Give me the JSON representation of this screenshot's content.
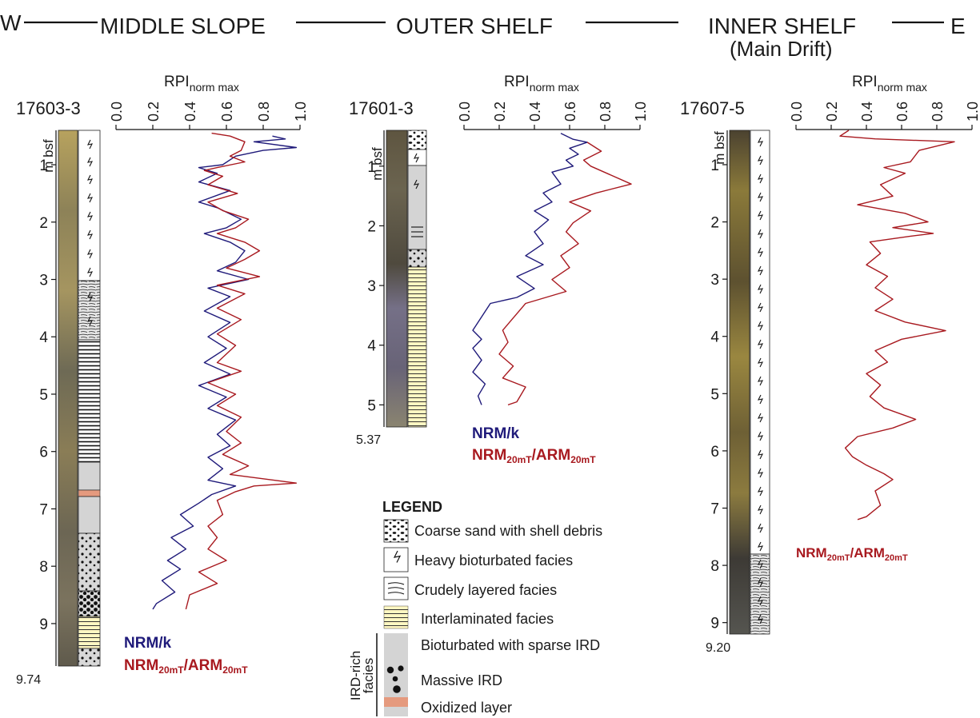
{
  "header": {
    "west": "W",
    "east": "E",
    "middle_slope": "MIDDLE SLOPE",
    "outer_shelf": "OUTER SHELF",
    "inner_shelf": "INNER SHELF",
    "inner_shelf_sub": "(Main Drift)"
  },
  "colors": {
    "nrm_k": "#1f1a7a",
    "nrm_arm": "#a8191f",
    "oxidized": "#e59a7e",
    "interlaminated": "#fff7c2",
    "bioturbated_ird": "#d4d4d4"
  },
  "axis_common": {
    "rpi_base": "RPI",
    "rpi_sub": "norm max",
    "depth_unit": "m bsf",
    "rpi_ticks": [
      "0.0",
      "0.2",
      "0.4",
      "0.6",
      "0.8",
      "1.0"
    ]
  },
  "cores": {
    "c17603": {
      "id": "17603-3",
      "bottom": "9.74",
      "depth_ticks": [
        "1",
        "2",
        "3",
        "4",
        "5",
        "6",
        "7",
        "8",
        "9"
      ]
    },
    "c17601": {
      "id": "17601-3",
      "bottom": "5.37",
      "depth_ticks": [
        "1",
        "2",
        "3",
        "4",
        "5"
      ]
    },
    "c17607": {
      "id": "17607-5",
      "bottom": "9.20",
      "depth_ticks": [
        "1",
        "2",
        "3",
        "4",
        "5",
        "6",
        "7",
        "8",
        "9"
      ]
    }
  },
  "legend_labels": {
    "nrm_k": "NRM/k",
    "nrm_base": "NRM",
    "arm_base": "/ARM",
    "sub_20mt": "20mT"
  },
  "legend": {
    "title": "LEGEND",
    "coarse_sand": "Coarse sand with shell debris",
    "heavy_bioturbated": "Heavy bioturbated facies",
    "crudely_layered": "Crudely layered facies",
    "interlaminated": "Interlaminated facies",
    "bioturbated_ird": "Bioturbated with sparse IRD",
    "massive_ird": "Massive IRD",
    "oxidized": "Oxidized layer",
    "ird_group_1": "IRD-rich",
    "ird_group_2": "facies"
  },
  "chart_data": [
    {
      "type": "line",
      "core": "17603-3",
      "xlabel": "RPI norm max",
      "ylabel": "m bsf",
      "xlim": [
        0,
        1
      ],
      "ylim": [
        9.74,
        0.4
      ],
      "series": [
        {
          "name": "NRM/k",
          "points": [
            [
              0.85,
              0.5
            ],
            [
              0.92,
              0.55
            ],
            [
              0.75,
              0.6
            ],
            [
              0.98,
              0.7
            ],
            [
              0.8,
              0.75
            ],
            [
              0.65,
              0.85
            ],
            [
              0.58,
              1.0
            ],
            [
              0.45,
              1.05
            ],
            [
              0.55,
              1.15
            ],
            [
              0.45,
              1.3
            ],
            [
              0.62,
              1.45
            ],
            [
              0.45,
              1.65
            ],
            [
              0.55,
              1.75
            ],
            [
              0.68,
              1.95
            ],
            [
              0.6,
              2.1
            ],
            [
              0.48,
              2.2
            ],
            [
              0.62,
              2.35
            ],
            [
              0.7,
              2.5
            ],
            [
              0.65,
              2.7
            ],
            [
              0.55,
              2.85
            ],
            [
              0.72,
              3.0
            ],
            [
              0.5,
              3.15
            ],
            [
              0.62,
              3.3
            ],
            [
              0.48,
              3.55
            ],
            [
              0.62,
              3.75
            ],
            [
              0.5,
              4.0
            ],
            [
              0.6,
              4.2
            ],
            [
              0.48,
              4.45
            ],
            [
              0.62,
              4.65
            ],
            [
              0.45,
              4.85
            ],
            [
              0.6,
              5.05
            ],
            [
              0.5,
              5.25
            ],
            [
              0.65,
              5.45
            ],
            [
              0.55,
              5.7
            ],
            [
              0.62,
              5.9
            ],
            [
              0.5,
              6.1
            ],
            [
              0.58,
              6.3
            ],
            [
              0.5,
              6.5
            ],
            [
              0.65,
              6.6
            ],
            [
              0.52,
              6.75
            ],
            [
              0.45,
              6.9
            ],
            [
              0.35,
              7.1
            ],
            [
              0.42,
              7.3
            ],
            [
              0.3,
              7.5
            ],
            [
              0.38,
              7.7
            ],
            [
              0.28,
              7.9
            ],
            [
              0.35,
              8.05
            ],
            [
              0.25,
              8.25
            ],
            [
              0.32,
              8.45
            ],
            [
              0.22,
              8.65
            ],
            [
              0.2,
              8.75
            ]
          ]
        },
        {
          "name": "NRM20mT/ARM20mT",
          "points": [
            [
              0.52,
              0.45
            ],
            [
              0.62,
              0.5
            ],
            [
              0.7,
              0.6
            ],
            [
              0.68,
              0.75
            ],
            [
              0.62,
              0.85
            ],
            [
              0.7,
              0.95
            ],
            [
              0.55,
              1.05
            ],
            [
              0.48,
              1.1
            ],
            [
              0.58,
              1.2
            ],
            [
              0.5,
              1.35
            ],
            [
              0.66,
              1.5
            ],
            [
              0.5,
              1.65
            ],
            [
              0.58,
              1.8
            ],
            [
              0.72,
              1.95
            ],
            [
              0.65,
              2.1
            ],
            [
              0.55,
              2.2
            ],
            [
              0.7,
              2.35
            ],
            [
              0.78,
              2.5
            ],
            [
              0.7,
              2.65
            ],
            [
              0.6,
              2.8
            ],
            [
              0.78,
              2.95
            ],
            [
              0.55,
              3.1
            ],
            [
              0.7,
              3.25
            ],
            [
              0.55,
              3.5
            ],
            [
              0.68,
              3.7
            ],
            [
              0.55,
              3.95
            ],
            [
              0.65,
              4.15
            ],
            [
              0.55,
              4.45
            ],
            [
              0.68,
              4.6
            ],
            [
              0.5,
              4.8
            ],
            [
              0.65,
              5.0
            ],
            [
              0.55,
              5.2
            ],
            [
              0.68,
              5.4
            ],
            [
              0.6,
              5.65
            ],
            [
              0.68,
              5.85
            ],
            [
              0.58,
              6.05
            ],
            [
              0.72,
              6.25
            ],
            [
              0.62,
              6.4
            ],
            [
              0.98,
              6.55
            ],
            [
              0.75,
              6.6
            ],
            [
              0.65,
              6.7
            ],
            [
              0.55,
              6.85
            ],
            [
              0.58,
              7.1
            ],
            [
              0.5,
              7.3
            ],
            [
              0.55,
              7.5
            ],
            [
              0.5,
              7.7
            ],
            [
              0.6,
              7.9
            ],
            [
              0.45,
              8.1
            ],
            [
              0.55,
              8.3
            ],
            [
              0.4,
              8.5
            ],
            [
              0.38,
              8.75
            ]
          ]
        }
      ]
    },
    {
      "type": "line",
      "core": "17601-3",
      "xlabel": "RPI norm max",
      "ylabel": "m bsf",
      "xlim": [
        0,
        1
      ],
      "ylim": [
        5.37,
        0.4
      ],
      "series": [
        {
          "name": "NRM/k",
          "points": [
            [
              0.55,
              0.45
            ],
            [
              0.62,
              0.55
            ],
            [
              0.7,
              0.6
            ],
            [
              0.6,
              0.7
            ],
            [
              0.65,
              0.8
            ],
            [
              0.58,
              0.9
            ],
            [
              0.62,
              1.0
            ],
            [
              0.5,
              1.1
            ],
            [
              0.55,
              1.3
            ],
            [
              0.45,
              1.45
            ],
            [
              0.5,
              1.6
            ],
            [
              0.4,
              1.75
            ],
            [
              0.48,
              1.9
            ],
            [
              0.4,
              2.1
            ],
            [
              0.45,
              2.3
            ],
            [
              0.35,
              2.5
            ],
            [
              0.45,
              2.65
            ],
            [
              0.3,
              2.85
            ],
            [
              0.4,
              3.05
            ],
            [
              0.3,
              3.2
            ],
            [
              0.15,
              3.3
            ],
            [
              0.05,
              3.75
            ],
            [
              0.1,
              3.9
            ],
            [
              0.05,
              4.05
            ],
            [
              0.1,
              4.25
            ],
            [
              0.05,
              4.45
            ],
            [
              0.12,
              4.65
            ],
            [
              0.08,
              4.85
            ],
            [
              0.1,
              5.0
            ]
          ]
        },
        {
          "name": "NRM20mT/ARM20mT",
          "points": [
            [
              0.7,
              0.6
            ],
            [
              0.78,
              0.75
            ],
            [
              0.68,
              0.9
            ],
            [
              0.72,
              1.0
            ],
            [
              0.95,
              1.3
            ],
            [
              0.75,
              1.45
            ],
            [
              0.6,
              1.6
            ],
            [
              0.72,
              1.75
            ],
            [
              0.62,
              1.95
            ],
            [
              0.58,
              2.1
            ],
            [
              0.65,
              2.3
            ],
            [
              0.55,
              2.5
            ],
            [
              0.6,
              2.7
            ],
            [
              0.5,
              2.9
            ],
            [
              0.58,
              3.1
            ],
            [
              0.35,
              3.3
            ],
            [
              0.22,
              3.75
            ],
            [
              0.25,
              3.95
            ],
            [
              0.2,
              4.15
            ],
            [
              0.28,
              4.35
            ],
            [
              0.22,
              4.55
            ],
            [
              0.35,
              4.7
            ],
            [
              0.3,
              4.95
            ],
            [
              0.25,
              5.0
            ]
          ]
        }
      ]
    },
    {
      "type": "line",
      "core": "17607-5",
      "xlabel": "RPI norm max",
      "ylabel": "m bsf",
      "xlim": [
        0,
        1
      ],
      "ylim": [
        9.2,
        0.4
      ],
      "series": [
        {
          "name": "NRM20mT/ARM20mT",
          "points": [
            [
              0.3,
              0.4
            ],
            [
              0.25,
              0.5
            ],
            [
              0.45,
              0.55
            ],
            [
              0.9,
              0.6
            ],
            [
              0.7,
              0.75
            ],
            [
              0.65,
              0.95
            ],
            [
              0.5,
              1.05
            ],
            [
              0.62,
              1.15
            ],
            [
              0.48,
              1.35
            ],
            [
              0.55,
              1.55
            ],
            [
              0.35,
              1.7
            ],
            [
              0.62,
              1.85
            ],
            [
              0.75,
              2.0
            ],
            [
              0.55,
              2.1
            ],
            [
              0.78,
              2.2
            ],
            [
              0.65,
              2.25
            ],
            [
              0.42,
              2.35
            ],
            [
              0.48,
              2.55
            ],
            [
              0.4,
              2.75
            ],
            [
              0.52,
              2.95
            ],
            [
              0.45,
              3.15
            ],
            [
              0.55,
              3.35
            ],
            [
              0.45,
              3.55
            ],
            [
              0.62,
              3.75
            ],
            [
              0.85,
              3.9
            ],
            [
              0.6,
              4.05
            ],
            [
              0.45,
              4.25
            ],
            [
              0.52,
              4.45
            ],
            [
              0.4,
              4.65
            ],
            [
              0.48,
              4.85
            ],
            [
              0.42,
              5.05
            ],
            [
              0.5,
              5.25
            ],
            [
              0.68,
              5.45
            ],
            [
              0.55,
              5.6
            ],
            [
              0.35,
              5.75
            ],
            [
              0.28,
              5.95
            ],
            [
              0.32,
              6.1
            ],
            [
              0.4,
              6.25
            ],
            [
              0.5,
              6.4
            ],
            [
              0.55,
              6.5
            ],
            [
              0.45,
              6.7
            ],
            [
              0.48,
              6.95
            ],
            [
              0.4,
              7.15
            ],
            [
              0.35,
              7.2
            ]
          ]
        }
      ]
    }
  ]
}
